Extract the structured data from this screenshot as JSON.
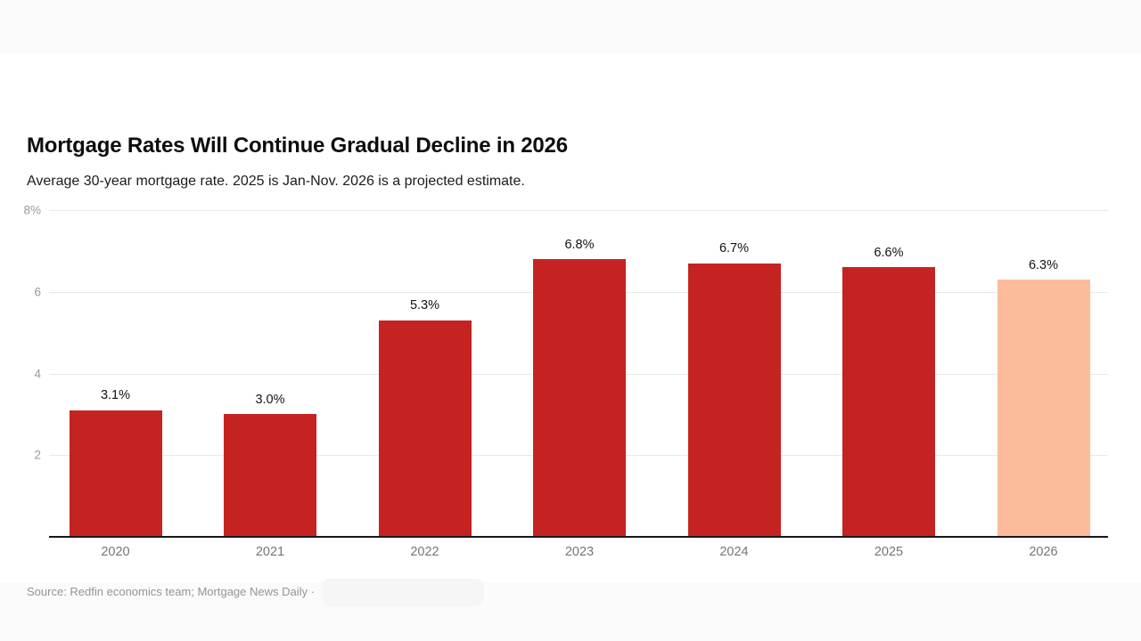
{
  "page": {
    "background": "#fbfbfb",
    "card_background": "#ffffff"
  },
  "header": {
    "title": "Mortgage Rates Will Continue Gradual Decline in 2026",
    "subtitle": "Average 30-year mortgage rate. 2025 is Jan-Nov. 2026 is a projected estimate."
  },
  "footer": {
    "source": "Source: Redfin economics team; Mortgage News Daily ·"
  },
  "chart_data": {
    "type": "bar",
    "title": "Mortgage Rates Will Continue Gradual Decline in 2026",
    "subtitle": "Average 30-year mortgage rate. 2025 is Jan-Nov. 2026 is a projected estimate.",
    "categories": [
      "2020",
      "2021",
      "2022",
      "2023",
      "2024",
      "2025",
      "2026"
    ],
    "values": [
      3.1,
      3.0,
      5.3,
      6.8,
      6.7,
      6.6,
      6.3
    ],
    "value_labels": [
      "3.1%",
      "3.0%",
      "5.3%",
      "6.8%",
      "6.7%",
      "6.6%",
      "6.3%"
    ],
    "bar_colors": [
      "#c52321",
      "#c52321",
      "#c52321",
      "#c52321",
      "#c52321",
      "#c52321",
      "#fcbc9b"
    ],
    "projected_category": "2026",
    "xlabel": "",
    "ylabel": "",
    "ylim": [
      0,
      8
    ],
    "yticks": [
      {
        "value": 8,
        "label": "8%"
      },
      {
        "value": 6,
        "label": "6"
      },
      {
        "value": 4,
        "label": "4"
      },
      {
        "value": 2,
        "label": "2"
      }
    ],
    "grid": true,
    "legend": false,
    "colors": {
      "bar": "#c52321",
      "projected_bar": "#fcbc9b",
      "gridline": "#e9e9e9",
      "axis_line": "#171717",
      "y_tick_label": "#999999",
      "x_tick_label": "#757575",
      "value_label": "#121212"
    }
  }
}
